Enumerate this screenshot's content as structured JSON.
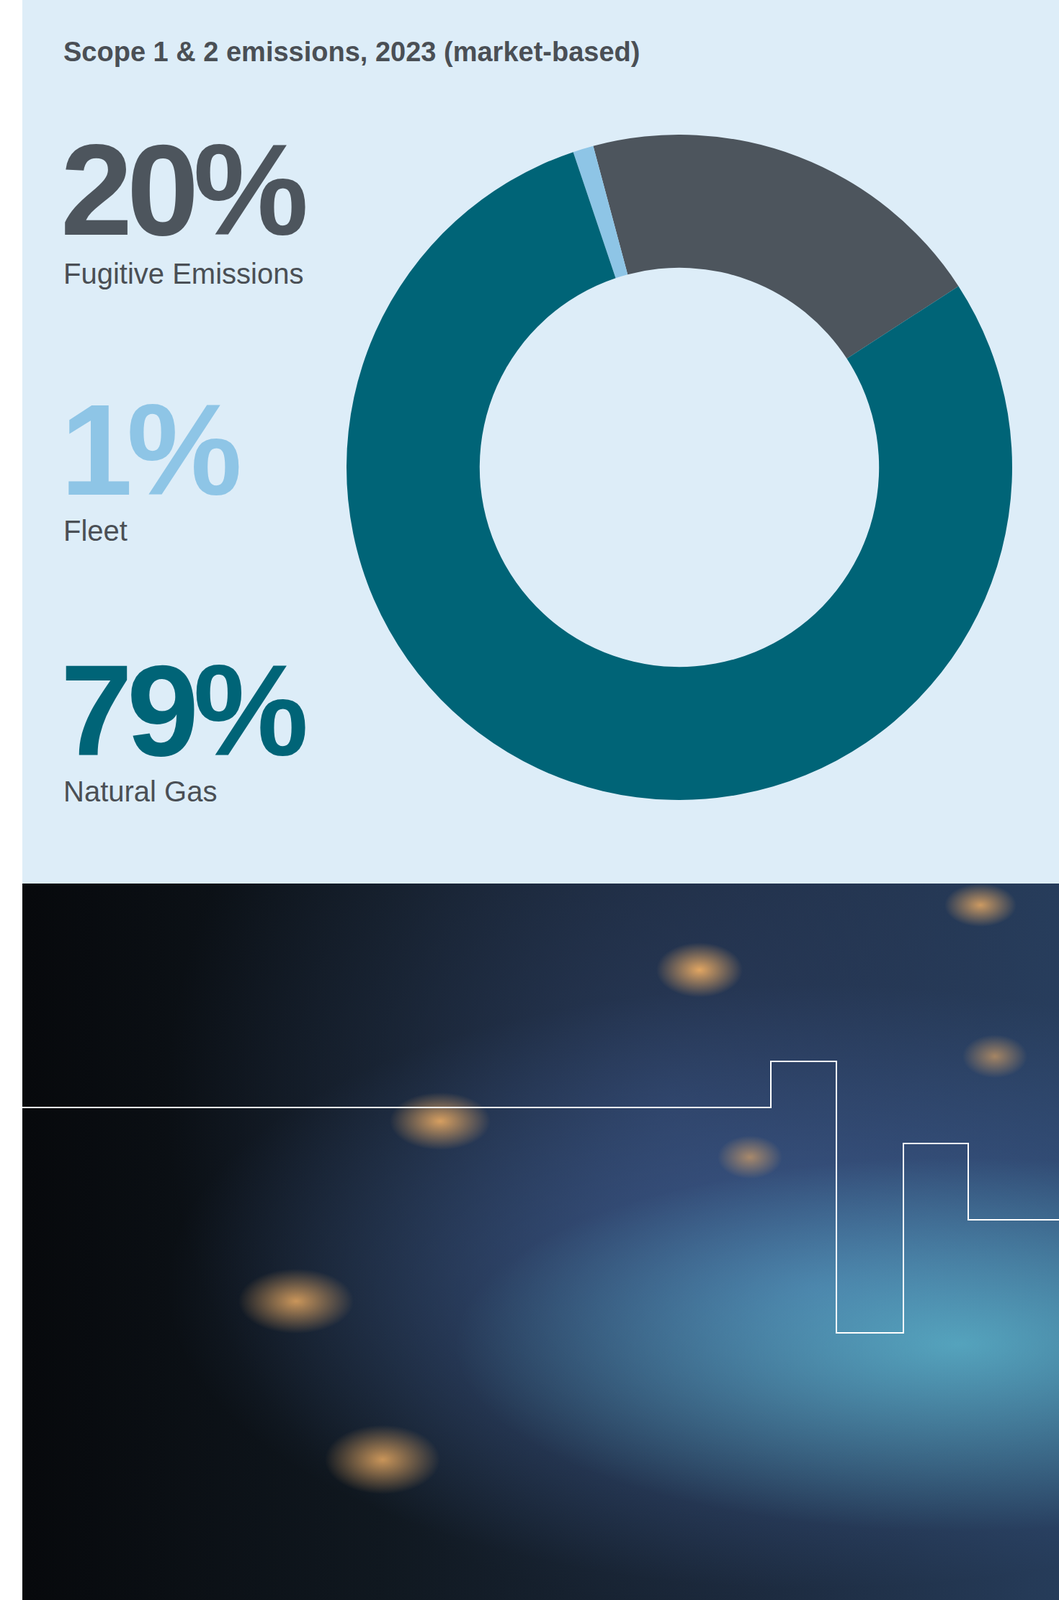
{
  "chart_data": {
    "type": "pie",
    "title": "Scope 1 & 2 emissions, 2023 (market-based)",
    "categories": [
      "Fugitive Emissions",
      "Fleet",
      "Natural Gas"
    ],
    "values": [
      20,
      1,
      79
    ],
    "value_labels": [
      "20%",
      "1%",
      "79%"
    ],
    "colors": [
      "#4d555d",
      "#8ec5e6",
      "#006477"
    ],
    "data_labels": false
  }
}
